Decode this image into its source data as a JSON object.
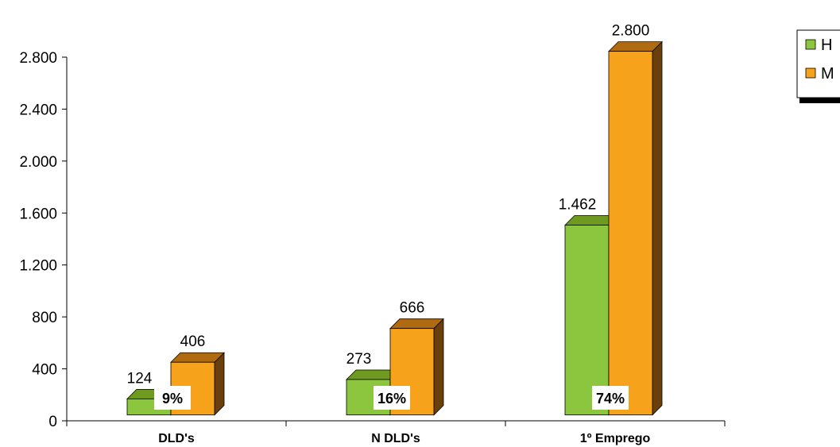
{
  "chart_data": {
    "type": "bar",
    "title": "",
    "xlabel": "",
    "ylabel": "",
    "categories": [
      "DLD's",
      "N DLD's",
      "1º Emprego"
    ],
    "series": [
      {
        "name": "H",
        "values": [
          124,
          273,
          1462
        ],
        "value_labels": [
          "124",
          "273",
          "1.462"
        ]
      },
      {
        "name": "M",
        "values": [
          406,
          666,
          2800
        ],
        "value_labels": [
          "406",
          "666",
          "2.800"
        ]
      }
    ],
    "percent_labels": [
      "9%",
      "16%",
      "74%"
    ],
    "ylim": [
      0,
      2800
    ],
    "yticks": [
      0,
      400,
      800,
      1200,
      1600,
      2000,
      2400,
      2800
    ],
    "ytick_labels": [
      "0",
      "400",
      "800",
      "1.200",
      "1.600",
      "2.000",
      "2.400",
      "2.800"
    ],
    "grid": false,
    "legend_position": "top-right",
    "colors": {
      "H_front": "#8cc63f",
      "H_dark": "#4d7a0a",
      "H_top": "#6e9b1f",
      "M_front": "#f7a21b",
      "M_dark": "#6b3f0c",
      "M_top": "#b06a10"
    }
  }
}
